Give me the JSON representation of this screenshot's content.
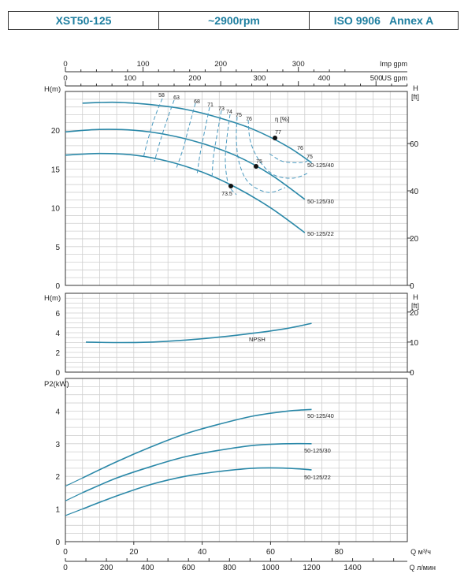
{
  "header": {
    "model": "XST50-125",
    "speed": "~2900rpm",
    "standard": "ISO 9906   Annex A"
  },
  "colors": {
    "curve": "#2a88a8",
    "eff": "#4a9ac0",
    "grid": "#cfcfcf",
    "frame": "#333333"
  },
  "chart_data": [
    {
      "type": "line",
      "name": "H-Q",
      "ylabel_left": "H(m)",
      "ylabel_right": "H [ft]",
      "top_axis_1": {
        "label": "Imp gpm",
        "ticks": [
          0,
          100,
          200,
          300
        ]
      },
      "top_axis_2": {
        "label": "US gpm",
        "ticks": [
          0,
          100,
          200,
          300,
          400
        ]
      },
      "top_axis_2_last": "500",
      "xlim": [
        0,
        100
      ],
      "ylim": [
        0,
        25
      ],
      "yticks_left": [
        0,
        5,
        10,
        15,
        20
      ],
      "yticks_right_ft": [
        0,
        20,
        40,
        60
      ],
      "grid": true,
      "series": [
        {
          "name": "50-125/40",
          "x": [
            5,
            15,
            25,
            35,
            45,
            55,
            65,
            72
          ],
          "y": [
            23.5,
            23.6,
            23.3,
            22.7,
            21.6,
            20.1,
            17.9,
            15.8
          ]
        },
        {
          "name": "50-125/30",
          "x": [
            0,
            10,
            20,
            30,
            40,
            50,
            60,
            70
          ],
          "y": [
            19.8,
            20.1,
            20.0,
            19.4,
            18.3,
            16.7,
            14.3,
            11.1
          ]
        },
        {
          "name": "50-125/22",
          "x": [
            0,
            10,
            20,
            30,
            40,
            50,
            60,
            70
          ],
          "y": [
            16.8,
            17.0,
            16.8,
            16.0,
            14.6,
            12.6,
            10.0,
            6.8
          ]
        }
      ],
      "efficiency_title": "η [%]",
      "efficiency_labels": [
        "58",
        "63",
        "68",
        "71",
        "73",
        "74",
        "75",
        "76",
        "77",
        "76",
        "75",
        "75",
        "73.5"
      ],
      "efficiency_marker_values": [
        "77",
        "75",
        "73.5"
      ]
    },
    {
      "type": "line",
      "name": "NPSH",
      "ylabel_left": "H(m)",
      "ylabel_right": "H [ft]",
      "xlim": [
        0,
        100
      ],
      "ylim": [
        0,
        8
      ],
      "yticks_left": [
        0,
        2,
        4,
        6
      ],
      "yticks_right_ft": [
        0,
        10,
        20
      ],
      "grid": true,
      "series": [
        {
          "name": "NPSH",
          "x": [
            6,
            15,
            25,
            35,
            45,
            55,
            65,
            72
          ],
          "y": [
            3.05,
            3.0,
            3.05,
            3.25,
            3.55,
            3.95,
            4.45,
            4.95
          ]
        }
      ]
    },
    {
      "type": "line",
      "name": "P2-Q",
      "ylabel_left": "P2(kW)",
      "xlim": [
        0,
        100
      ],
      "ylim": [
        0,
        5
      ],
      "yticks_left": [
        0,
        1,
        2,
        3,
        4
      ],
      "xticks_m3h": [
        0,
        20,
        40,
        60,
        80
      ],
      "xticks_lmin": [
        0,
        200,
        400,
        600,
        800,
        1000,
        1200,
        1400
      ],
      "xlabel_m3h": "Q   м³/ч",
      "xlabel_lmin": "Q   л/мин",
      "grid": true,
      "series": [
        {
          "name": "50-125/40",
          "x": [
            5,
            15,
            25,
            35,
            45,
            55,
            65,
            72
          ],
          "y": [
            1.95,
            2.45,
            2.9,
            3.3,
            3.6,
            3.85,
            4.0,
            4.05
          ]
        },
        {
          "name": "50-125/30",
          "x": [
            5,
            15,
            25,
            35,
            45,
            55,
            65,
            72
          ],
          "y": [
            1.5,
            1.95,
            2.3,
            2.6,
            2.8,
            2.95,
            3.0,
            3.0
          ]
        },
        {
          "name": "50-125/22",
          "x": [
            5,
            15,
            25,
            35,
            45,
            55,
            65,
            72
          ],
          "y": [
            1.0,
            1.4,
            1.75,
            2.0,
            2.15,
            2.25,
            2.25,
            2.2
          ]
        }
      ]
    }
  ]
}
